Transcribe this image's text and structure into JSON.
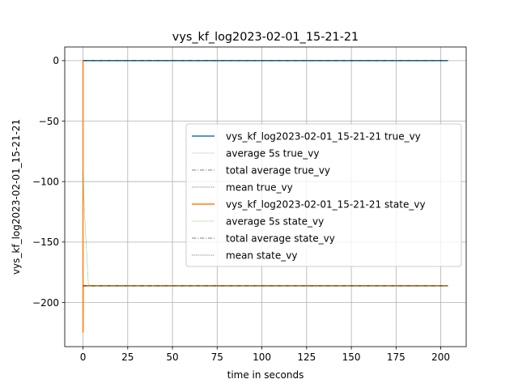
{
  "chart_data": {
    "type": "line",
    "title": "vys_kf_log2023-02-01_15-21-21",
    "xlabel": "time in seconds",
    "ylabel": "vys_kf_log2023-02-01_15-21-21",
    "xlim": [
      -10.2,
      214.2
    ],
    "ylim": [
      -236.5,
      11.3
    ],
    "xticks": [
      0,
      25,
      50,
      75,
      100,
      125,
      150,
      175,
      200
    ],
    "xtick_labels": [
      "0",
      "25",
      "50",
      "75",
      "100",
      "125",
      "150",
      "175",
      "200"
    ],
    "yticks": [
      0,
      -50,
      -100,
      -150,
      -200
    ],
    "ytick_labels": [
      "0",
      "−50",
      "−100",
      "−150",
      "−200"
    ],
    "grid": true,
    "legend_position": "center-right",
    "series": [
      {
        "name": "vys_kf_log2023-02-01_15-21-21 true_vy",
        "color": "#1f77b4",
        "style": "solid",
        "x": [
          0,
          0.5,
          1,
          204
        ],
        "y": [
          0,
          0,
          0,
          0
        ]
      },
      {
        "name": "average 5s true_vy",
        "color": "#2ca02c",
        "style": "dotted",
        "x": [
          0,
          204
        ],
        "y": [
          0,
          0
        ]
      },
      {
        "name": "total average true_vy",
        "color": "#000000",
        "style": "dashdot",
        "x": [
          0,
          204
        ],
        "y": [
          0,
          0
        ]
      },
      {
        "name": "mean true_vy",
        "color": "#000000",
        "style": "dotted",
        "x": [
          0,
          204
        ],
        "y": [
          0,
          0
        ]
      },
      {
        "name": "vys_kf_log2023-02-01_15-21-21 state_vy",
        "color": "#ff7f0e",
        "style": "solid",
        "x": [
          0,
          0,
          0.05,
          0.1,
          0.15,
          0.25,
          0.4,
          1,
          204
        ],
        "y": [
          0,
          -224.5,
          -222,
          -190,
          -186,
          -186.5,
          -186,
          -186.2,
          -186.2
        ]
      },
      {
        "name": "average 5s state_vy",
        "color": "#2ca02c",
        "style": "dotted",
        "x": [
          0,
          1,
          3,
          5,
          204
        ],
        "y": [
          -93,
          -130,
          -185,
          -186.2,
          -186.2
        ]
      },
      {
        "name": "total average state_vy",
        "color": "#000000",
        "style": "dashdot",
        "x": [
          0,
          204
        ],
        "y": [
          -186.2,
          -186.2
        ]
      },
      {
        "name": "mean state_vy",
        "color": "#000000",
        "style": "dotted",
        "x": [
          0,
          204
        ],
        "y": [
          -186.2,
          -186.2
        ]
      }
    ]
  }
}
